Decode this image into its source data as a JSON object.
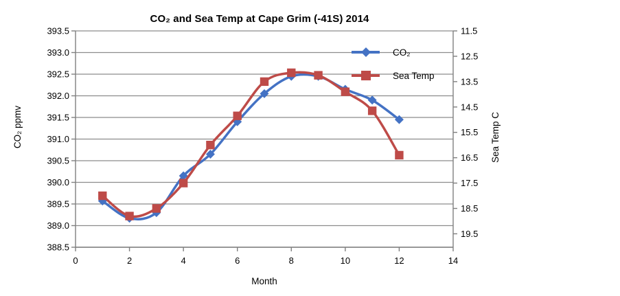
{
  "chart_data": {
    "type": "line",
    "title": "CO₂ and Sea Temp at Cape Grim (-41S) 2014",
    "x": [
      1,
      2,
      3,
      4,
      5,
      6,
      7,
      8,
      9,
      10,
      11,
      12
    ],
    "series": [
      {
        "name": "CO₂",
        "axis": "left",
        "color": "#4472C4",
        "marker": "diamond",
        "values": [
          389.57,
          389.17,
          389.3,
          390.15,
          390.65,
          391.4,
          392.05,
          392.45,
          392.45,
          392.15,
          391.9,
          391.45
        ]
      },
      {
        "name": "Sea Temp",
        "axis": "right",
        "color": "#BE4B48",
        "marker": "square",
        "values": [
          18.0,
          18.8,
          18.5,
          17.5,
          16.0,
          14.85,
          13.5,
          13.15,
          13.25,
          13.9,
          14.65,
          16.4
        ]
      }
    ],
    "x_axis": {
      "title": "Month",
      "min": 0,
      "max": 14,
      "tick_values": [
        0,
        2,
        4,
        6,
        8,
        10,
        12,
        14
      ],
      "tick_labels": [
        "0",
        "2",
        "4",
        "6",
        "8",
        "10",
        "12",
        "14"
      ]
    },
    "left_axis": {
      "title": "CO₂ ppmv",
      "min": 388.5,
      "max": 393.5,
      "tick_values": [
        388.5,
        389.0,
        389.5,
        390.0,
        390.5,
        391.0,
        391.5,
        392.0,
        392.5,
        393.0,
        393.5
      ],
      "tick_labels": [
        "388.5",
        "389.0",
        "389.5",
        "390.0",
        "390.5",
        "391.0",
        "391.5",
        "392.0",
        "392.5",
        "393.0",
        "393.5"
      ]
    },
    "right_axis": {
      "title": "Sea Temp C",
      "min": 11.5,
      "max": 20.03,
      "reversed": true,
      "tick_values": [
        11.5,
        12.5,
        13.5,
        14.5,
        15.5,
        16.5,
        17.5,
        18.5,
        19.5
      ],
      "tick_labels": [
        "11.5",
        "12.5",
        "13.5",
        "14.5",
        "15.5",
        "16.5",
        "17.5",
        "18.5",
        "19.5"
      ]
    },
    "smooth_lines": true,
    "grid": true,
    "legend": {
      "position": "inside-top-right"
    },
    "colors": {
      "grid": "#8C8C8C",
      "axis": "#7F7F7F",
      "text": "#000000",
      "background": "#FFFFFF",
      "frame": "#000000"
    }
  }
}
